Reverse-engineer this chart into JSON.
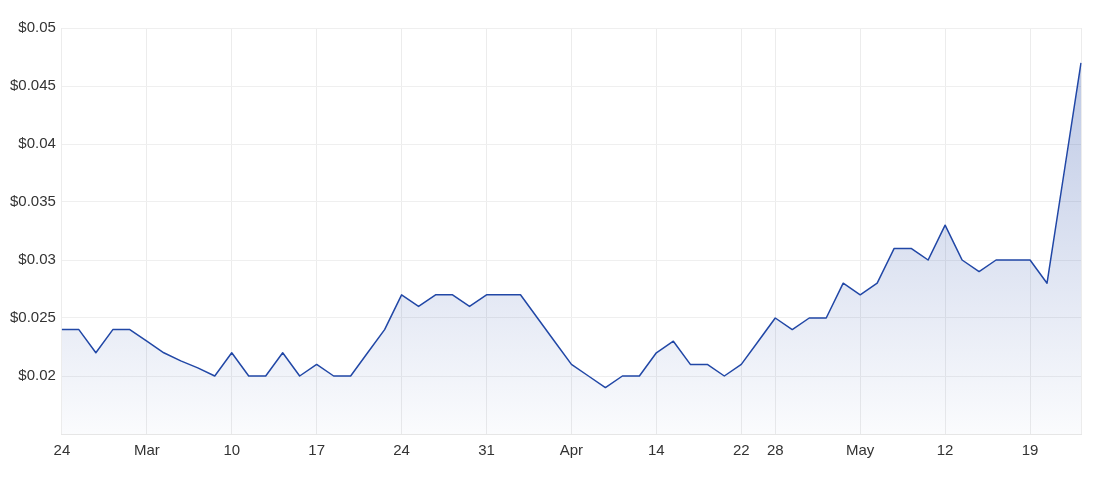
{
  "chart_data": {
    "type": "area",
    "categories": [
      "24",
      null,
      null,
      null,
      null,
      "Mar",
      null,
      null,
      null,
      null,
      "10",
      null,
      null,
      null,
      null,
      "17",
      null,
      null,
      null,
      null,
      "24",
      null,
      null,
      null,
      null,
      "31",
      null,
      null,
      null,
      null,
      "Apr",
      null,
      null,
      null,
      null,
      "14",
      null,
      null,
      null,
      null,
      "22",
      null,
      "28",
      null,
      null,
      null,
      null,
      "May",
      null,
      null,
      null,
      null,
      "12",
      null,
      null,
      null,
      null,
      "19",
      null,
      null,
      null
    ],
    "series": [
      {
        "color": "#2147a6",
        "values": [
          0.024,
          0.024,
          0.022,
          0.024,
          0.024,
          0.023,
          0.022,
          0.0213,
          0.0207,
          0.02,
          0.022,
          0.02,
          0.02,
          0.022,
          0.02,
          0.021,
          0.02,
          0.02,
          0.022,
          0.024,
          0.027,
          0.026,
          0.027,
          0.027,
          0.026,
          0.027,
          0.027,
          0.027,
          0.025,
          0.023,
          0.021,
          0.02,
          0.019,
          0.02,
          0.02,
          0.022,
          0.023,
          0.021,
          0.021,
          0.02,
          0.021,
          0.023,
          0.025,
          0.024,
          0.025,
          0.025,
          0.028,
          0.027,
          0.028,
          0.031,
          0.031,
          0.03,
          0.033,
          0.03,
          0.029,
          0.03,
          0.03,
          0.03,
          0.028,
          0.0375,
          0.047
        ]
      }
    ],
    "ylim": [
      0.015,
      0.05
    ],
    "yticks": [
      {
        "value": 0.02,
        "label": "$0.02"
      },
      {
        "value": 0.025,
        "label": "$0.025"
      },
      {
        "value": 0.03,
        "label": "$0.03"
      },
      {
        "value": 0.035,
        "label": "$0.035"
      },
      {
        "value": 0.04,
        "label": "$0.04"
      },
      {
        "value": 0.045,
        "label": "$0.045"
      },
      {
        "value": 0.05,
        "label": "$0.05"
      }
    ],
    "grid": true,
    "legend": false,
    "marker": "none",
    "line_style": "solid"
  }
}
